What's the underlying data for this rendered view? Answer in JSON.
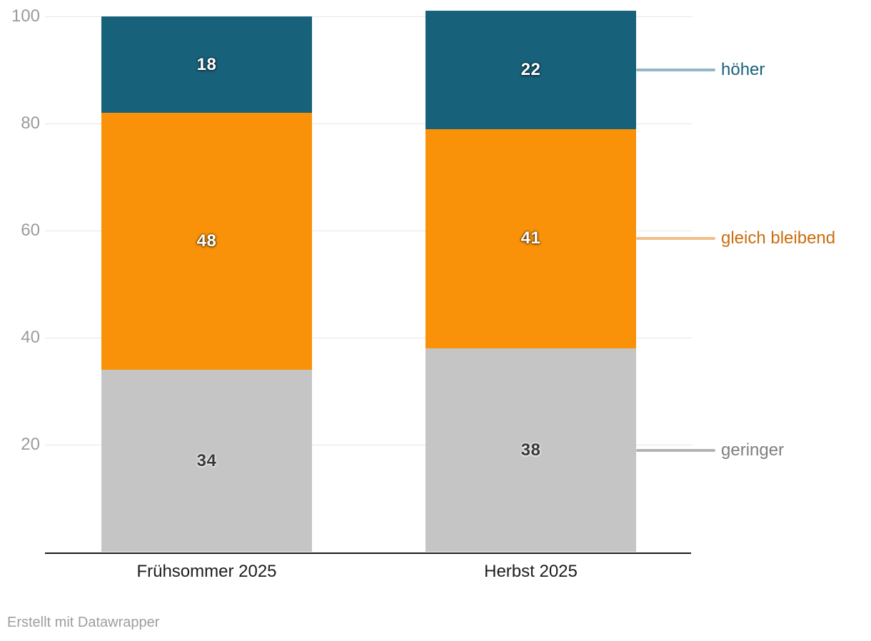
{
  "chart_data": {
    "type": "bar",
    "stacked": true,
    "orientation": "vertical",
    "categories": [
      "Frühsommer 2025",
      "Herbst 2025"
    ],
    "series": [
      {
        "name": "geringer",
        "values": [
          34,
          38
        ],
        "color": "#c5c5c5",
        "value_label_color": "#383838",
        "value_label_halo": "light",
        "legend_text_color": "#7e7e7e",
        "connector_color": "#b3b3b3"
      },
      {
        "name": "gleich bleibend",
        "values": [
          48,
          41
        ],
        "color": "#f99208",
        "value_label_color": "#ffffff",
        "value_label_halo": "dark",
        "legend_text_color": "#cc6d0e",
        "connector_color": "#f2bd86"
      },
      {
        "name": "höher",
        "values": [
          18,
          22
        ],
        "color": "#18617b",
        "value_label_color": "#ffffff",
        "value_label_halo": "dark",
        "legend_text_color": "#18617b",
        "connector_color": "#93b7c6"
      }
    ],
    "yticks": [
      20,
      40,
      60,
      80,
      100
    ],
    "ylim": [
      0,
      100
    ],
    "grid": true,
    "legend_position": "right"
  },
  "colors": {
    "grid": "#e6e6e6",
    "axis": "#191919",
    "tick_label": "#9b9b9b",
    "category_label": "#1c1c1c",
    "background": "#ffffff"
  },
  "footer": {
    "credit": "Erstellt mit Datawrapper"
  }
}
